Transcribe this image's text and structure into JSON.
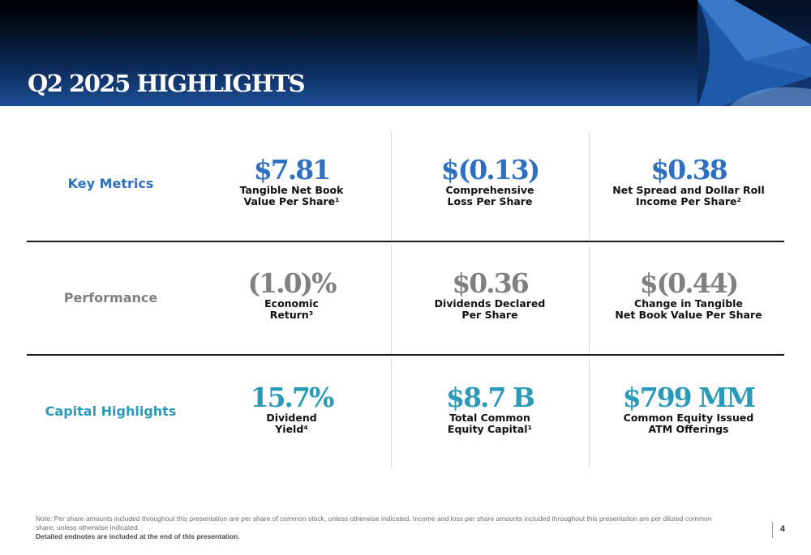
{
  "header": {
    "title": "Q2 2025 HIGHLIGHTS"
  },
  "rows": {
    "key_metrics": {
      "label": "Key Metrics",
      "color": "#2e6fc0",
      "items": [
        {
          "value": "$7.81",
          "desc_line1": "Tangible Net Book",
          "desc_line2": "Value Per Share¹"
        },
        {
          "value": "$(0.13)",
          "desc_line1": "Comprehensive",
          "desc_line2": "Loss Per Share"
        },
        {
          "value": "$0.38",
          "desc_line1": "Net Spread and Dollar Roll",
          "desc_line2": "Income Per Share²"
        }
      ]
    },
    "performance": {
      "label": "Performance",
      "color": "#808080",
      "items": [
        {
          "value": "(1.0)%",
          "desc_line1": "Economic",
          "desc_line2": "Return³"
        },
        {
          "value": "$0.36",
          "desc_line1": "Dividends Declared",
          "desc_line2": "Per Share"
        },
        {
          "value": "$(0.44)",
          "desc_line1": "Change in Tangible",
          "desc_line2": "Net Book Value Per Share"
        }
      ]
    },
    "capital": {
      "label": "Capital Highlights",
      "color": "#2b9ab8",
      "items": [
        {
          "value": "15.7%",
          "desc_line1": "Dividend",
          "desc_line2": "Yield⁴"
        },
        {
          "value": "$8.7 B",
          "desc_line1": "Total Common",
          "desc_line2": "Equity Capital¹"
        },
        {
          "value": "$799 MM",
          "desc_line1": "Common Equity Issued",
          "desc_line2": "ATM Offerings"
        }
      ]
    }
  },
  "footer": {
    "note": "Note:  Per share amounts included throughout this presentation are per share of common stock, unless otherwise indicated. Income and loss per share amounts included throughout this presentation are per diluted common share, unless otherwise indicated.",
    "note_bold": "Detailed endnotes are included at the end of this presentation.",
    "page_number": "4"
  }
}
